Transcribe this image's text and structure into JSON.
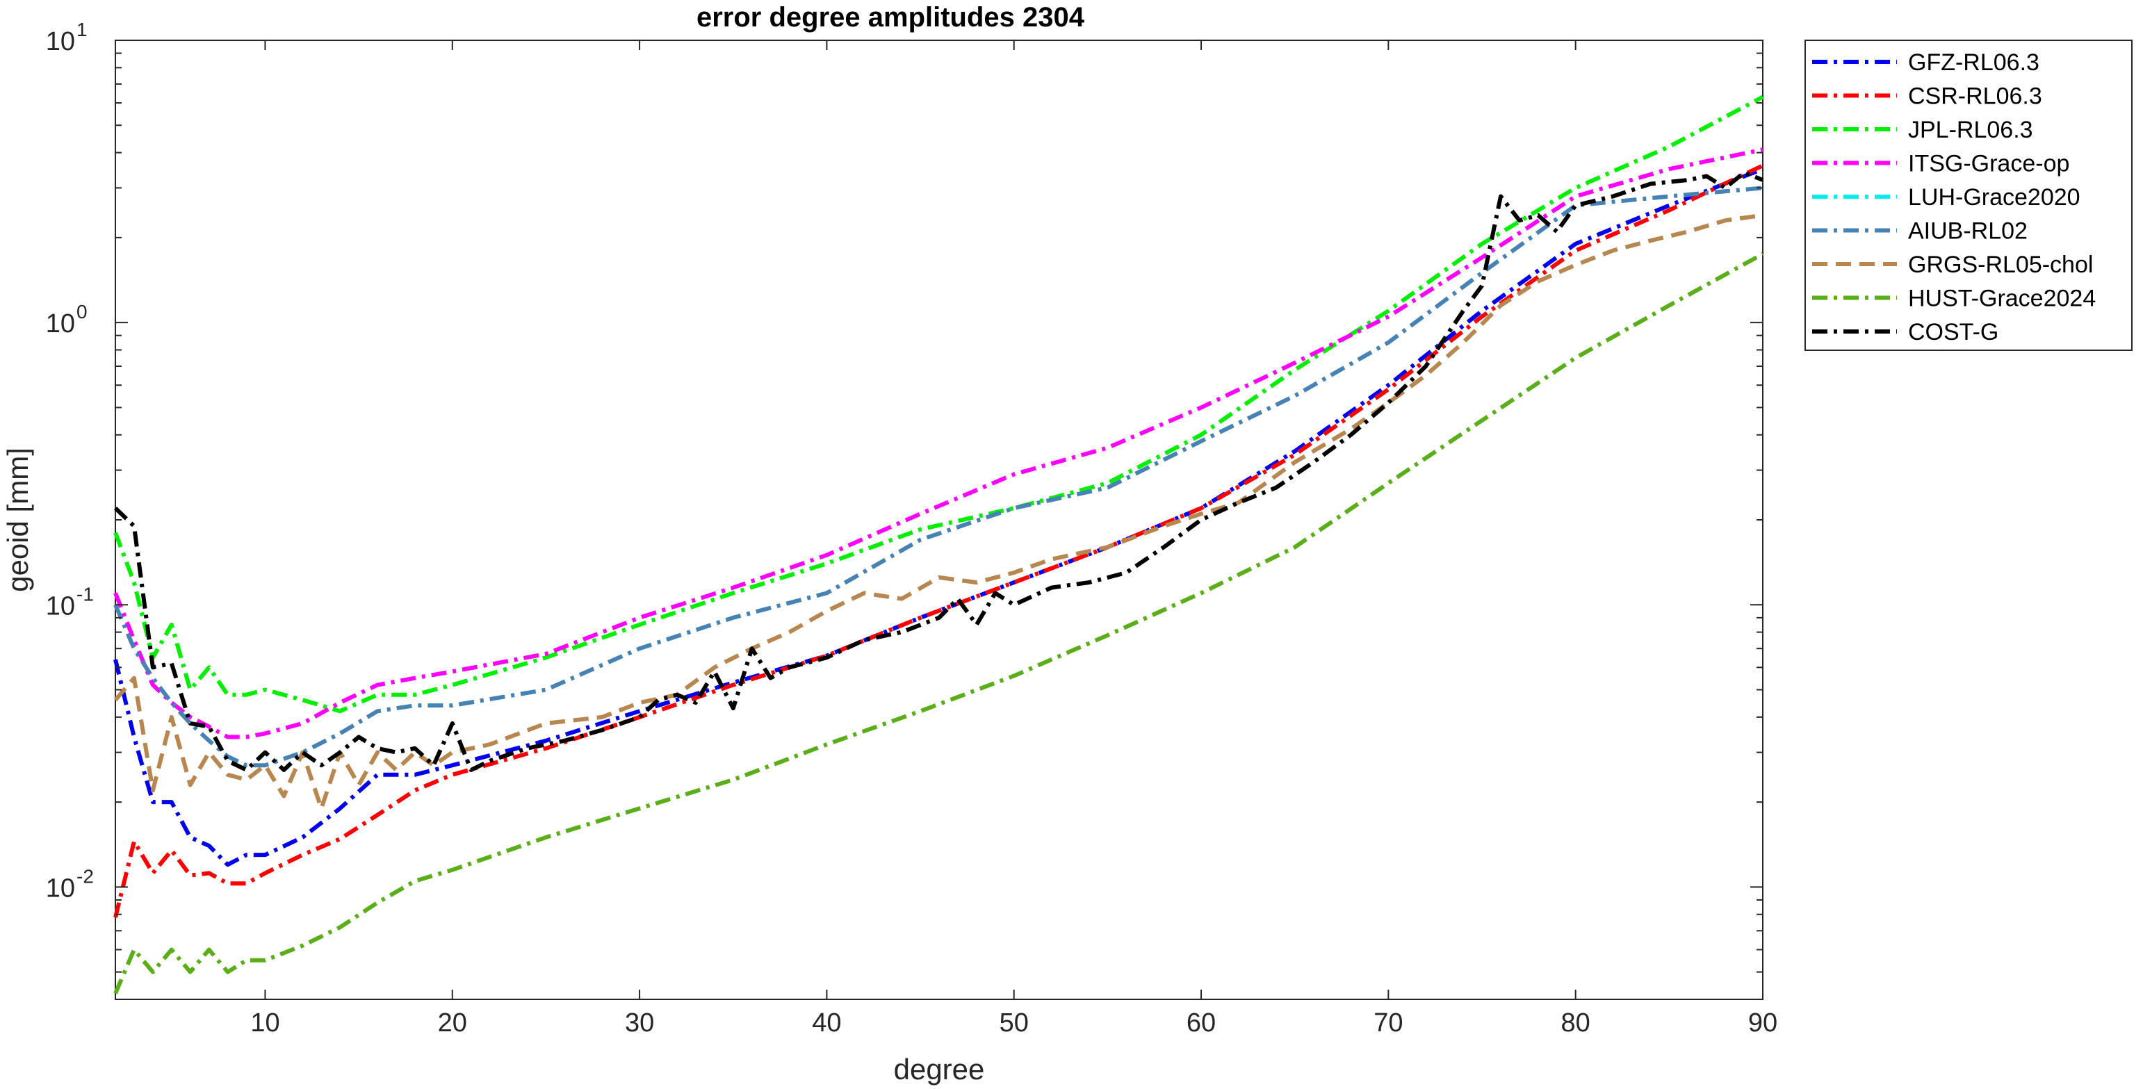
{
  "chart_data": {
    "type": "line",
    "title": "error degree amplitudes 2304",
    "xlabel": "degree",
    "ylabel": "geoid [mm]",
    "xlim": [
      2,
      90
    ],
    "ylim": [
      0.004,
      10
    ],
    "yscale": "log",
    "grid": false,
    "legend_position": "outside-top-right",
    "x_ticks": [
      {
        "value": 10,
        "label": "10"
      },
      {
        "value": 20,
        "label": "20"
      },
      {
        "value": 30,
        "label": "30"
      },
      {
        "value": 40,
        "label": "40"
      },
      {
        "value": 50,
        "label": "50"
      },
      {
        "value": 60,
        "label": "60"
      },
      {
        "value": 70,
        "label": "70"
      },
      {
        "value": 80,
        "label": "80"
      },
      {
        "value": 90,
        "label": "90"
      }
    ],
    "y_ticks": [
      {
        "value": 0.01,
        "base": "10",
        "exp": "-2"
      },
      {
        "value": 0.1,
        "base": "10",
        "exp": "-1"
      },
      {
        "value": 1,
        "base": "10",
        "exp": "0"
      },
      {
        "value": 10,
        "base": "10",
        "exp": "1"
      }
    ],
    "series": [
      {
        "name": "GFZ-RL06.3",
        "color": "#0000ee",
        "dash": "dashdot",
        "points": [
          [
            2,
            0.064
          ],
          [
            3,
            0.034
          ],
          [
            4,
            0.02
          ],
          [
            5,
            0.02
          ],
          [
            6,
            0.015
          ],
          [
            7,
            0.014
          ],
          [
            8,
            0.012
          ],
          [
            9,
            0.013
          ],
          [
            10,
            0.013
          ],
          [
            12,
            0.015
          ],
          [
            14,
            0.019
          ],
          [
            16,
            0.025
          ],
          [
            18,
            0.025
          ],
          [
            20,
            0.027
          ],
          [
            25,
            0.033
          ],
          [
            30,
            0.042
          ],
          [
            35,
            0.053
          ],
          [
            40,
            0.066
          ],
          [
            45,
            0.09
          ],
          [
            50,
            0.12
          ],
          [
            55,
            0.16
          ],
          [
            60,
            0.22
          ],
          [
            65,
            0.35
          ],
          [
            70,
            0.6
          ],
          [
            75,
            1.1
          ],
          [
            80,
            1.9
          ],
          [
            85,
            2.6
          ],
          [
            90,
            3.5
          ]
        ]
      },
      {
        "name": "CSR-RL06.3",
        "color": "#ff0000",
        "dash": "dashdot",
        "points": [
          [
            2,
            0.0078
          ],
          [
            3,
            0.0145
          ],
          [
            4,
            0.0112
          ],
          [
            5,
            0.0135
          ],
          [
            6,
            0.011
          ],
          [
            7,
            0.0112
          ],
          [
            8,
            0.0103
          ],
          [
            9,
            0.0103
          ],
          [
            10,
            0.0112
          ],
          [
            12,
            0.013
          ],
          [
            14,
            0.0148
          ],
          [
            16,
            0.018
          ],
          [
            18,
            0.022
          ],
          [
            20,
            0.025
          ],
          [
            25,
            0.031
          ],
          [
            30,
            0.04
          ],
          [
            35,
            0.052
          ],
          [
            40,
            0.066
          ],
          [
            45,
            0.09
          ],
          [
            50,
            0.12
          ],
          [
            55,
            0.16
          ],
          [
            60,
            0.22
          ],
          [
            65,
            0.34
          ],
          [
            70,
            0.58
          ],
          [
            75,
            1.05
          ],
          [
            80,
            1.8
          ],
          [
            85,
            2.5
          ],
          [
            90,
            3.6
          ]
        ]
      },
      {
        "name": "JPL-RL06.3",
        "color": "#00ee00",
        "dash": "dashdot",
        "points": [
          [
            2,
            0.18
          ],
          [
            3,
            0.12
          ],
          [
            4,
            0.065
          ],
          [
            5,
            0.085
          ],
          [
            6,
            0.05
          ],
          [
            7,
            0.06
          ],
          [
            8,
            0.048
          ],
          [
            9,
            0.048
          ],
          [
            10,
            0.05
          ],
          [
            12,
            0.046
          ],
          [
            14,
            0.042
          ],
          [
            16,
            0.048
          ],
          [
            18,
            0.048
          ],
          [
            20,
            0.052
          ],
          [
            25,
            0.065
          ],
          [
            30,
            0.085
          ],
          [
            35,
            0.11
          ],
          [
            40,
            0.14
          ],
          [
            45,
            0.185
          ],
          [
            50,
            0.22
          ],
          [
            55,
            0.27
          ],
          [
            60,
            0.4
          ],
          [
            65,
            0.68
          ],
          [
            70,
            1.1
          ],
          [
            75,
            1.9
          ],
          [
            80,
            3.0
          ],
          [
            85,
            4.2
          ],
          [
            90,
            6.3
          ]
        ]
      },
      {
        "name": "ITSG-Grace-op",
        "color": "#ff00ff",
        "dash": "dashdot",
        "points": [
          [
            2,
            0.11
          ],
          [
            3,
            0.075
          ],
          [
            4,
            0.052
          ],
          [
            5,
            0.045
          ],
          [
            6,
            0.04
          ],
          [
            7,
            0.037
          ],
          [
            8,
            0.034
          ],
          [
            9,
            0.034
          ],
          [
            10,
            0.035
          ],
          [
            12,
            0.038
          ],
          [
            14,
            0.045
          ],
          [
            16,
            0.052
          ],
          [
            18,
            0.055
          ],
          [
            20,
            0.058
          ],
          [
            25,
            0.067
          ],
          [
            30,
            0.09
          ],
          [
            35,
            0.115
          ],
          [
            40,
            0.15
          ],
          [
            45,
            0.21
          ],
          [
            50,
            0.29
          ],
          [
            55,
            0.36
          ],
          [
            60,
            0.5
          ],
          [
            65,
            0.72
          ],
          [
            70,
            1.05
          ],
          [
            75,
            1.7
          ],
          [
            80,
            2.8
          ],
          [
            85,
            3.5
          ],
          [
            90,
            4.1
          ]
        ]
      },
      {
        "name": "LUH-Grace2020",
        "color": "#00eeee",
        "dash": "dashdot",
        "points": []
      },
      {
        "name": "AIUB-RL02",
        "color": "#4682b4",
        "dash": "dashdot",
        "points": [
          [
            2,
            0.1
          ],
          [
            3,
            0.07
          ],
          [
            4,
            0.055
          ],
          [
            5,
            0.045
          ],
          [
            6,
            0.038
          ],
          [
            7,
            0.033
          ],
          [
            8,
            0.029
          ],
          [
            9,
            0.027
          ],
          [
            10,
            0.027
          ],
          [
            12,
            0.03
          ],
          [
            14,
            0.035
          ],
          [
            16,
            0.042
          ],
          [
            18,
            0.044
          ],
          [
            20,
            0.044
          ],
          [
            25,
            0.05
          ],
          [
            30,
            0.07
          ],
          [
            35,
            0.09
          ],
          [
            40,
            0.11
          ],
          [
            45,
            0.17
          ],
          [
            50,
            0.22
          ],
          [
            55,
            0.26
          ],
          [
            60,
            0.38
          ],
          [
            65,
            0.55
          ],
          [
            70,
            0.85
          ],
          [
            75,
            1.5
          ],
          [
            80,
            2.6
          ],
          [
            85,
            2.8
          ],
          [
            90,
            3.0
          ]
        ]
      },
      {
        "name": "GRGS-RL05-chol",
        "color": "#b8864f",
        "dash": "dashed",
        "points": [
          [
            2,
            0.046
          ],
          [
            3,
            0.055
          ],
          [
            4,
            0.022
          ],
          [
            5,
            0.04
          ],
          [
            6,
            0.023
          ],
          [
            7,
            0.03
          ],
          [
            8,
            0.025
          ],
          [
            9,
            0.024
          ],
          [
            10,
            0.027
          ],
          [
            11,
            0.021
          ],
          [
            12,
            0.03
          ],
          [
            13,
            0.019
          ],
          [
            14,
            0.03
          ],
          [
            15,
            0.023
          ],
          [
            16,
            0.03
          ],
          [
            17,
            0.026
          ],
          [
            18,
            0.03
          ],
          [
            19,
            0.027
          ],
          [
            20,
            0.03
          ],
          [
            22,
            0.032
          ],
          [
            25,
            0.038
          ],
          [
            28,
            0.04
          ],
          [
            30,
            0.045
          ],
          [
            32,
            0.048
          ],
          [
            34,
            0.06
          ],
          [
            36,
            0.07
          ],
          [
            38,
            0.08
          ],
          [
            40,
            0.095
          ],
          [
            42,
            0.11
          ],
          [
            44,
            0.105
          ],
          [
            46,
            0.125
          ],
          [
            48,
            0.12
          ],
          [
            50,
            0.13
          ],
          [
            52,
            0.145
          ],
          [
            55,
            0.16
          ],
          [
            58,
            0.19
          ],
          [
            60,
            0.21
          ],
          [
            62,
            0.23
          ],
          [
            65,
            0.32
          ],
          [
            68,
            0.42
          ],
          [
            70,
            0.52
          ],
          [
            72,
            0.65
          ],
          [
            74,
            0.85
          ],
          [
            76,
            1.15
          ],
          [
            78,
            1.4
          ],
          [
            80,
            1.6
          ],
          [
            82,
            1.8
          ],
          [
            84,
            1.95
          ],
          [
            86,
            2.1
          ],
          [
            88,
            2.3
          ],
          [
            90,
            2.4
          ]
        ]
      },
      {
        "name": "HUST-Grace2024",
        "color": "#5aae1a",
        "dash": "dashdot",
        "points": [
          [
            2,
            0.0042
          ],
          [
            3,
            0.006
          ],
          [
            4,
            0.005
          ],
          [
            5,
            0.006
          ],
          [
            6,
            0.005
          ],
          [
            7,
            0.006
          ],
          [
            8,
            0.005
          ],
          [
            9,
            0.0055
          ],
          [
            10,
            0.0055
          ],
          [
            12,
            0.0062
          ],
          [
            14,
            0.0072
          ],
          [
            16,
            0.0088
          ],
          [
            18,
            0.0105
          ],
          [
            20,
            0.0115
          ],
          [
            25,
            0.015
          ],
          [
            30,
            0.019
          ],
          [
            35,
            0.024
          ],
          [
            40,
            0.032
          ],
          [
            45,
            0.042
          ],
          [
            50,
            0.056
          ],
          [
            55,
            0.078
          ],
          [
            60,
            0.11
          ],
          [
            65,
            0.16
          ],
          [
            70,
            0.27
          ],
          [
            75,
            0.45
          ],
          [
            80,
            0.75
          ],
          [
            85,
            1.15
          ],
          [
            90,
            1.75
          ]
        ]
      },
      {
        "name": "COST-G",
        "color": "#000000",
        "dash": "dashdot",
        "points": [
          [
            2,
            0.22
          ],
          [
            3,
            0.19
          ],
          [
            4,
            0.06
          ],
          [
            5,
            0.062
          ],
          [
            6,
            0.038
          ],
          [
            7,
            0.037
          ],
          [
            8,
            0.028
          ],
          [
            9,
            0.026
          ],
          [
            10,
            0.03
          ],
          [
            11,
            0.026
          ],
          [
            12,
            0.03
          ],
          [
            13,
            0.027
          ],
          [
            14,
            0.03
          ],
          [
            15,
            0.034
          ],
          [
            16,
            0.031
          ],
          [
            17,
            0.03
          ],
          [
            18,
            0.031
          ],
          [
            19,
            0.027
          ],
          [
            20,
            0.038
          ],
          [
            21,
            0.026
          ],
          [
            22,
            0.028
          ],
          [
            24,
            0.031
          ],
          [
            26,
            0.033
          ],
          [
            28,
            0.036
          ],
          [
            30,
            0.04
          ],
          [
            31,
            0.046
          ],
          [
            32,
            0.048
          ],
          [
            33,
            0.045
          ],
          [
            34,
            0.058
          ],
          [
            35,
            0.043
          ],
          [
            36,
            0.07
          ],
          [
            37,
            0.055
          ],
          [
            38,
            0.06
          ],
          [
            40,
            0.065
          ],
          [
            42,
            0.075
          ],
          [
            44,
            0.08
          ],
          [
            46,
            0.09
          ],
          [
            47,
            0.105
          ],
          [
            48,
            0.085
          ],
          [
            49,
            0.11
          ],
          [
            50,
            0.1
          ],
          [
            52,
            0.115
          ],
          [
            54,
            0.12
          ],
          [
            56,
            0.13
          ],
          [
            58,
            0.16
          ],
          [
            60,
            0.2
          ],
          [
            62,
            0.23
          ],
          [
            64,
            0.26
          ],
          [
            66,
            0.32
          ],
          [
            68,
            0.4
          ],
          [
            70,
            0.52
          ],
          [
            72,
            0.7
          ],
          [
            74,
            1.1
          ],
          [
            75,
            1.35
          ],
          [
            76,
            2.8
          ],
          [
            77,
            2.3
          ],
          [
            78,
            2.4
          ],
          [
            79,
            2.1
          ],
          [
            80,
            2.6
          ],
          [
            82,
            2.8
          ],
          [
            84,
            3.1
          ],
          [
            86,
            3.2
          ],
          [
            87,
            3.3
          ],
          [
            88,
            3.0
          ],
          [
            89,
            3.4
          ],
          [
            90,
            3.2
          ]
        ]
      }
    ]
  }
}
